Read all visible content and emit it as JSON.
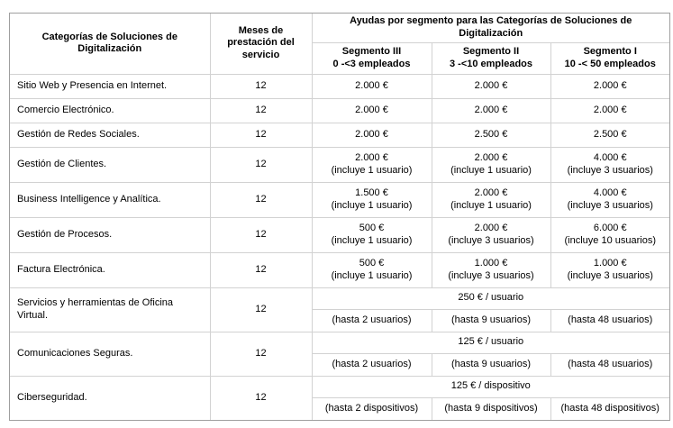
{
  "colors": {
    "background": "#ffffff",
    "text": "#000000",
    "border_inner": "#d2d2d2",
    "border_outer": "#9f9f9f"
  },
  "table": {
    "header": {
      "col_category": "Categorías de Soluciones de Digitalización",
      "col_months": "Meses de prestación del servicio",
      "group_title": "Ayudas por segmento para las Categorías de Soluciones de Digitalización",
      "segments": [
        {
          "name": "Segmento III",
          "range": "0 -<3 empleados"
        },
        {
          "name": "Segmento II",
          "range": "3 -<10 empleados"
        },
        {
          "name": "Segmento I",
          "range": "10 -< 50 empleados"
        }
      ]
    },
    "rows": [
      {
        "category": "Sitio Web y Presencia en Internet.",
        "months": "12",
        "segments": [
          {
            "amount": "2.000 €",
            "note": ""
          },
          {
            "amount": "2.000 €",
            "note": ""
          },
          {
            "amount": "2.000 €",
            "note": ""
          }
        ]
      },
      {
        "category": "Comercio Electrónico.",
        "months": "12",
        "segments": [
          {
            "amount": "2.000 €",
            "note": ""
          },
          {
            "amount": "2.000 €",
            "note": ""
          },
          {
            "amount": "2.000 €",
            "note": ""
          }
        ]
      },
      {
        "category": "Gestión de Redes Sociales.",
        "months": "12",
        "segments": [
          {
            "amount": "2.000 €",
            "note": ""
          },
          {
            "amount": "2.500 €",
            "note": ""
          },
          {
            "amount": "2.500 €",
            "note": ""
          }
        ]
      },
      {
        "category": "Gestión de Clientes.",
        "months": "12",
        "segments": [
          {
            "amount": "2.000 €",
            "note": "(incluye 1 usuario)"
          },
          {
            "amount": "2.000 €",
            "note": "(incluye 1 usuario)"
          },
          {
            "amount": "4.000 €",
            "note": "(incluye 3 usuarios)"
          }
        ]
      },
      {
        "category": "Business Intelligence y Analítica.",
        "months": "12",
        "segments": [
          {
            "amount": "1.500 €",
            "note": "(incluye 1 usuario)"
          },
          {
            "amount": "2.000 €",
            "note": "(incluye 1 usuario)"
          },
          {
            "amount": "4.000 €",
            "note": "(incluye 3 usuarios)"
          }
        ]
      },
      {
        "category": "Gestión de Procesos.",
        "months": "12",
        "segments": [
          {
            "amount": "500 €",
            "note": "(incluye 1 usuario)"
          },
          {
            "amount": "2.000 €",
            "note": "(incluye 3 usuarios)"
          },
          {
            "amount": "6.000 €",
            "note": "(incluye 10 usuarios)"
          }
        ]
      },
      {
        "category": "Factura Electrónica.",
        "months": "12",
        "segments": [
          {
            "amount": "500 €",
            "note": "(incluye 1 usuario)"
          },
          {
            "amount": "1.000 €",
            "note": "(incluye 3 usuarios)"
          },
          {
            "amount": "1.000 €",
            "note": "(incluye 3 usuarios)"
          }
        ]
      }
    ],
    "split_rows": [
      {
        "category": "Servicios y herramientas de Oficina Virtual.",
        "months": "12",
        "unit_price": "250 € / usuario",
        "limits": [
          "(hasta 2 usuarios)",
          "(hasta 9 usuarios)",
          "(hasta 48 usuarios)"
        ]
      },
      {
        "category": "Comunicaciones Seguras.",
        "months": "12",
        "unit_price": "125 € / usuario",
        "limits": [
          "(hasta 2 usuarios)",
          "(hasta 9 usuarios)",
          "(hasta 48 usuarios)"
        ]
      },
      {
        "category": "Ciberseguridad.",
        "months": "12",
        "unit_price": "125 € / dispositivo",
        "limits": [
          "(hasta 2 dispositivos)",
          "(hasta 9 dispositivos)",
          "(hasta 48 dispositivos)"
        ]
      }
    ]
  }
}
